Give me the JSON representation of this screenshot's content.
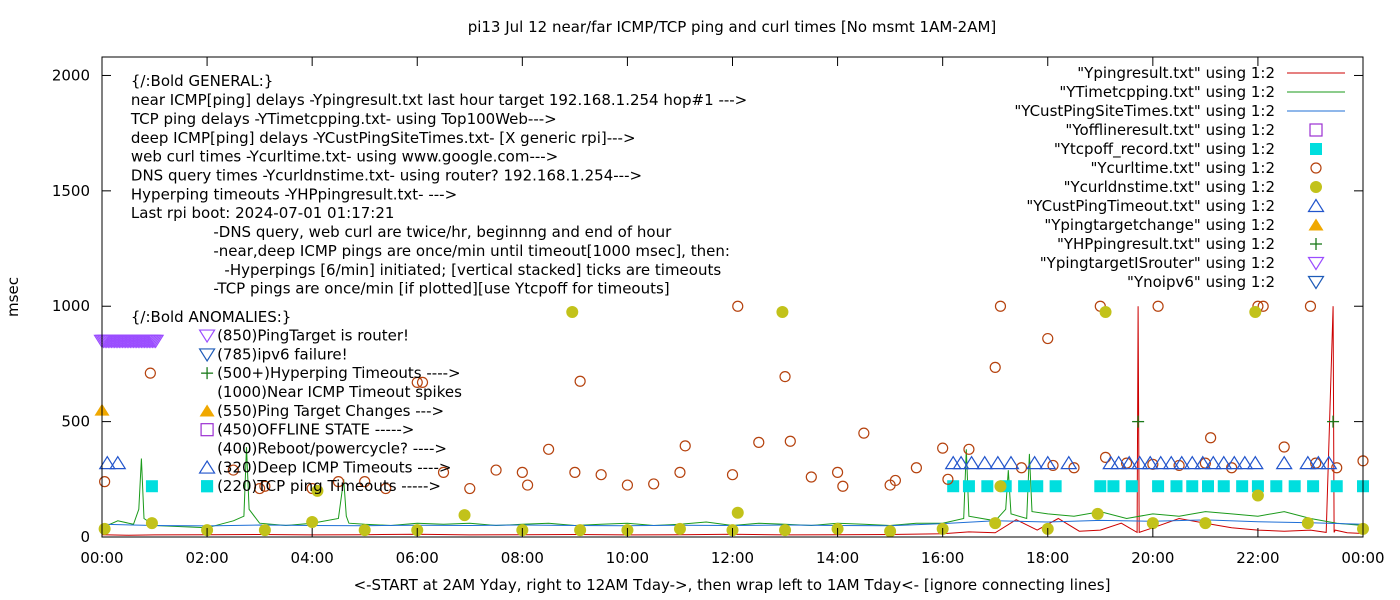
{
  "chart_data": {
    "type": "scatter",
    "title": "pi13 Jul 12  near/far ICMP/TCP ping and curl times [No msmt 1AM-2AM]",
    "xlabel": "<-START at 2AM Yday, right to 12AM Tday->, then wrap left to 1AM Tday<- [ignore connecting lines]",
    "ylabel": "msec",
    "xlim": [
      0,
      24
    ],
    "ylim": [
      0,
      2080
    ],
    "x_ticks": [
      {
        "v": 0,
        "label": "00:00"
      },
      {
        "v": 2,
        "label": "02:00"
      },
      {
        "v": 4,
        "label": "04:00"
      },
      {
        "v": 6,
        "label": "06:00"
      },
      {
        "v": 8,
        "label": "08:00"
      },
      {
        "v": 10,
        "label": "10:00"
      },
      {
        "v": 12,
        "label": "12:00"
      },
      {
        "v": 14,
        "label": "14:00"
      },
      {
        "v": 16,
        "label": "16:00"
      },
      {
        "v": 18,
        "label": "18:00"
      },
      {
        "v": 20,
        "label": "20:00"
      },
      {
        "v": 22,
        "label": "22:00"
      },
      {
        "v": 24,
        "label": "00:00"
      }
    ],
    "y_ticks": [
      {
        "v": 0,
        "label": "0"
      },
      {
        "v": 500,
        "label": "500"
      },
      {
        "v": 1000,
        "label": "1000"
      },
      {
        "v": 1500,
        "label": "1500"
      },
      {
        "v": 2000,
        "label": "2000"
      }
    ],
    "annotations": [
      {
        "text": "{/:Bold GENERAL:}",
        "x": 0.55,
        "y": 1975
      },
      {
        "text": "near ICMP[ping] delays -Ypingresult.txt last hour target 192.168.1.254 hop#1 --->",
        "x": 0.55,
        "y": 1893
      },
      {
        "text": "TCP ping delays -YTimetcpping.txt- using Top100Web--->",
        "x": 0.55,
        "y": 1812
      },
      {
        "text": "deep ICMP[ping] delays -YCustPingSiteTimes.txt- [X generic rpi]--->",
        "x": 0.55,
        "y": 1730
      },
      {
        "text": "web curl times -Ycurltime.txt- using www.google.com--->",
        "x": 0.55,
        "y": 1648
      },
      {
        "text": "DNS query times -Ycurldnstime.txt- using router? 192.168.1.254--->",
        "x": 0.55,
        "y": 1567
      },
      {
        "text": "Hyperping timeouts -YHPpingresult.txt- --->",
        "x": 0.55,
        "y": 1485
      },
      {
        "text": "Last rpi boot: 2024-07-01 01:17:21",
        "x": 0.55,
        "y": 1403
      },
      {
        "text": "-DNS query, web curl are twice/hr, beginnng and end of hour",
        "x": 2.12,
        "y": 1322
      },
      {
        "text": "-near,deep ICMP pings are once/min until timeout[1000 msec], then:",
        "x": 2.12,
        "y": 1240
      },
      {
        "text": "-Hyperpings [6/min] initiated; [vertical stacked] ticks are timeouts",
        "x": 2.33,
        "y": 1158
      },
      {
        "text": "-TCP pings are once/min [if plotted][use Ytcpoff for timeouts]",
        "x": 2.12,
        "y": 1077
      },
      {
        "text": "{/:Bold ANOMALIES:}",
        "x": 0.55,
        "y": 954
      },
      {
        "text": "(850)PingTarget is router!",
        "x": 2.19,
        "y": 873
      },
      {
        "text": "(785)ipv6 failure!",
        "x": 2.19,
        "y": 791
      },
      {
        "text": "(500+)Hyperping Timeouts ---->",
        "x": 2.19,
        "y": 710
      },
      {
        "text": "(1000)Near ICMP Timeout spikes",
        "x": 2.19,
        "y": 628
      },
      {
        "text": "(550)Ping Target Changes --->",
        "x": 2.19,
        "y": 546
      },
      {
        "text": "(450)OFFLINE STATE ----->",
        "x": 2.19,
        "y": 465
      },
      {
        "text": "(400)Reboot/powercycle? ---->",
        "x": 2.19,
        "y": 383
      },
      {
        "text": "(320)Deep ICMP Timeouts ---->",
        "x": 2.19,
        "y": 301
      },
      {
        "text": "(220)TCP ping Timeouts ----->",
        "x": 2.19,
        "y": 220
      }
    ],
    "annotation_markers": [
      {
        "symbol": "triangle-down-open",
        "color": "#9b4dff",
        "x": 2.0,
        "y": 873
      },
      {
        "symbol": "triangle-down-open",
        "color": "#1e5bb8",
        "x": 2.0,
        "y": 791
      },
      {
        "symbol": "plus",
        "color": "#1a7a1a",
        "x": 2.0,
        "y": 710
      },
      {
        "symbol": "triangle-filled",
        "color": "#f0a800",
        "x": 2.0,
        "y": 546
      },
      {
        "symbol": "square-open",
        "color": "#9b2fd1",
        "x": 2.0,
        "y": 465
      },
      {
        "symbol": "triangle-open",
        "color": "#2255cc",
        "x": 2.0,
        "y": 301
      },
      {
        "symbol": "square-filled",
        "color": "#00dede",
        "x": 2.0,
        "y": 220
      }
    ],
    "legend_position": "top-right",
    "legend": [
      {
        "label": "\"Ypingresult.txt\" using 1:2",
        "symbol": "line",
        "color": "#cc0000"
      },
      {
        "label": "\"YTimetcpping.txt\" using 1:2",
        "symbol": "line",
        "color": "#1a9a1a"
      },
      {
        "label": "\"YCustPingSiteTimes.txt\" using 1:2",
        "symbol": "line",
        "color": "#1f6fd6"
      },
      {
        "label": "\"Yofflineresult.txt\" using 1:2",
        "symbol": "square-open",
        "color": "#9b2fd1"
      },
      {
        "label": "\"Ytcpoff_record.txt\" using 1:2",
        "symbol": "square-filled",
        "color": "#00dede"
      },
      {
        "label": "\"Ycurltime.txt\" using 1:2",
        "symbol": "circle-open",
        "color": "#b5420e"
      },
      {
        "label": "\"Ycurldnstime.txt\" using 1:2",
        "symbol": "circle-filled",
        "color": "#c2c21a"
      },
      {
        "label": "\"YCustPingTimeout.txt\" using 1:2",
        "symbol": "triangle-open",
        "color": "#2255cc"
      },
      {
        "label": "\"Ypingtargetchange\" using 1:2",
        "symbol": "triangle-filled",
        "color": "#f0a800"
      },
      {
        "label": "\"YHPpingresult.txt\" using 1:2",
        "symbol": "plus",
        "color": "#1a7a1a"
      },
      {
        "label": "\"YpingtargetISrouter\" using 1:2",
        "symbol": "triangle-down-open",
        "color": "#9b4dff"
      },
      {
        "label": "\"Ynoipv6\" using 1:2",
        "symbol": "triangle-down-open",
        "color": "#1e5bb8"
      }
    ],
    "series": [
      {
        "name": "\"Ypingresult.txt\" using 1:2",
        "kind": "line",
        "color": "#cc0000",
        "x": [
          0,
          0.5,
          1,
          2,
          3,
          4,
          5,
          6,
          7,
          8,
          9,
          10,
          11,
          12,
          13,
          14,
          15,
          16,
          16.5,
          17,
          17.4,
          17.8,
          18.2,
          18.6,
          19,
          19.4,
          19.7,
          19.72,
          19.74,
          20,
          20.5,
          21,
          21.5,
          22,
          22.5,
          23,
          23.3,
          23.43,
          23.45,
          23.47,
          23.7,
          24
        ],
        "y": [
          10,
          8,
          9,
          10,
          11,
          9,
          10,
          12,
          9,
          10,
          11,
          9,
          10,
          12,
          9,
          10,
          11,
          14,
          22,
          18,
          75,
          30,
          80,
          25,
          30,
          60,
          20,
          1000,
          20,
          40,
          80,
          60,
          40,
          30,
          25,
          30,
          20,
          1000,
          20,
          30,
          18,
          15
        ]
      },
      {
        "name": "\"YTimetcpping.txt\" using 1:2",
        "kind": "line",
        "color": "#1a9a1a",
        "x": [
          0,
          0.3,
          0.6,
          0.7,
          0.75,
          0.8,
          1.0,
          1.5,
          2.0,
          2.5,
          2.7,
          2.75,
          2.8,
          3.0,
          3.5,
          4.0,
          4.5,
          4.6,
          4.65,
          4.7,
          5.0,
          5.5,
          6.0,
          6.5,
          7.0,
          7.5,
          8.0,
          8.5,
          9.0,
          9.5,
          10.0,
          10.5,
          11.0,
          11.5,
          12.0,
          12.5,
          13.0,
          13.5,
          14.0,
          14.5,
          15.0,
          15.5,
          16.0,
          16.4,
          16.45,
          16.5,
          17.0,
          17.2,
          17.25,
          17.3,
          17.6,
          17.65,
          17.7,
          18.0,
          18.5,
          19.0,
          19.5,
          20.0,
          20.5,
          21.0,
          21.5,
          22.0,
          22.5,
          23.0,
          23.5,
          24.0
        ],
        "y": [
          40,
          70,
          55,
          120,
          340,
          80,
          50,
          45,
          40,
          70,
          90,
          390,
          120,
          60,
          50,
          60,
          80,
          250,
          90,
          60,
          55,
          50,
          60,
          55,
          60,
          50,
          55,
          60,
          50,
          55,
          60,
          50,
          55,
          65,
          50,
          60,
          55,
          50,
          60,
          55,
          50,
          60,
          60,
          80,
          380,
          90,
          70,
          120,
          290,
          100,
          80,
          360,
          110,
          100,
          90,
          110,
          80,
          100,
          90,
          110,
          100,
          90,
          110,
          80,
          60,
          50
        ]
      },
      {
        "name": "\"YCustPingSiteTimes.txt\" using 1:2",
        "kind": "line",
        "color": "#1f6fd6",
        "x": [
          0,
          1,
          2,
          3,
          4,
          5,
          6,
          7,
          8,
          9,
          10,
          11,
          12,
          13,
          14,
          15,
          16,
          17,
          18,
          19,
          20,
          21,
          22,
          23,
          24
        ],
        "y": [
          55,
          50,
          48,
          52,
          50,
          49,
          51,
          50,
          52,
          50,
          49,
          51,
          50,
          52,
          50,
          49,
          58,
          70,
          65,
          72,
          68,
          74,
          66,
          62,
          55
        ]
      },
      {
        "name": "\"Ytcpoff_record.txt\" using 1:2",
        "kind": "square-filled",
        "color": "#00dede",
        "x": [
          0.95,
          2.0,
          16.2,
          16.5,
          16.85,
          17.2,
          17.55,
          17.8,
          18.15,
          19.0,
          19.25,
          19.6,
          20.1,
          20.45,
          20.75,
          21.05,
          21.35,
          21.7,
          22.0,
          22.35,
          22.7,
          23.05,
          23.5,
          24.0
        ],
        "y": [
          220,
          220,
          220,
          220,
          220,
          220,
          220,
          220,
          220,
          220,
          220,
          220,
          220,
          220,
          220,
          220,
          220,
          220,
          220,
          220,
          220,
          220,
          220,
          220
        ]
      },
      {
        "name": "\"Ycurltime.txt\" using 1:2",
        "kind": "circle-open",
        "color": "#b5420e",
        "x": [
          0.05,
          0.92,
          2.5,
          3.0,
          3.1,
          4.0,
          4.5,
          5.0,
          5.4,
          6.0,
          6.1,
          6.5,
          7.0,
          7.5,
          8.0,
          8.1,
          8.5,
          9.0,
          9.1,
          9.5,
          10.0,
          10.5,
          11.0,
          11.1,
          12.0,
          12.1,
          12.5,
          13.0,
          13.1,
          13.5,
          14.0,
          14.1,
          14.5,
          15.0,
          15.1,
          15.5,
          16.0,
          16.1,
          16.5,
          17.0,
          17.1,
          17.5,
          18.0,
          18.1,
          18.5,
          19.0,
          19.1,
          19.5,
          20.0,
          20.1,
          20.5,
          21.0,
          21.1,
          21.5,
          22.0,
          22.1,
          22.5,
          23.0,
          23.1,
          23.5,
          24.0
        ],
        "y": [
          240,
          710,
          290,
          210,
          220,
          210,
          240,
          240,
          210,
          670,
          670,
          280,
          210,
          290,
          280,
          225,
          380,
          280,
          675,
          270,
          225,
          230,
          280,
          395,
          270,
          1000,
          410,
          695,
          415,
          260,
          280,
          220,
          450,
          225,
          245,
          300,
          385,
          250,
          380,
          735,
          1000,
          300,
          860,
          310,
          300,
          1000,
          345,
          320,
          315,
          1000,
          310,
          320,
          430,
          300,
          1000,
          1000,
          390,
          1000,
          320,
          300,
          330
        ]
      },
      {
        "name": "\"Ycurldnstime.txt\" using 1:2",
        "kind": "circle-filled",
        "color": "#c2c21a",
        "x": [
          0.05,
          0.95,
          2.0,
          3.1,
          4.0,
          4.1,
          5.0,
          6.0,
          6.9,
          8.0,
          8.95,
          9.1,
          10.0,
          11.0,
          12.0,
          12.1,
          12.95,
          13.0,
          14.0,
          15.0,
          16.0,
          17.0,
          17.1,
          18.0,
          18.95,
          19.1,
          20.0,
          21.0,
          21.95,
          22.0,
          22.95,
          24.0
        ],
        "y": [
          35,
          60,
          30,
          30,
          65,
          200,
          30,
          30,
          95,
          30,
          975,
          30,
          30,
          35,
          30,
          105,
          975,
          30,
          35,
          25,
          35,
          60,
          220,
          35,
          100,
          975,
          60,
          60,
          975,
          180,
          60,
          35
        ]
      },
      {
        "name": "\"YCustPingTimeout.txt\" using 1:2",
        "kind": "triangle-open",
        "color": "#2255cc",
        "x": [
          0.1,
          0.3,
          16.2,
          16.35,
          16.55,
          16.8,
          17.05,
          17.3,
          17.75,
          18.0,
          18.4,
          19.2,
          19.35,
          19.55,
          19.75,
          19.95,
          20.15,
          20.35,
          20.55,
          20.75,
          20.95,
          21.15,
          21.35,
          21.55,
          21.75,
          21.95,
          22.5,
          22.95,
          23.15,
          23.35
        ],
        "y": [
          320,
          320,
          320,
          320,
          320,
          320,
          320,
          320,
          320,
          320,
          320,
          320,
          320,
          320,
          320,
          320,
          320,
          320,
          320,
          320,
          320,
          320,
          320,
          320,
          320,
          320,
          320,
          320,
          320,
          320
        ]
      },
      {
        "name": "\"Ypingtargetchange\" using 1:2",
        "kind": "triangle-filled",
        "color": "#f0a800",
        "x": [
          0.0
        ],
        "y": [
          550
        ]
      },
      {
        "name": "\"YHPpingresult.txt\" using 1:2",
        "kind": "plus",
        "color": "#1a7a1a",
        "x": [
          19.72,
          23.43
        ],
        "y": [
          500,
          500
        ]
      },
      {
        "name": "\"YpingtargetISrouter\" using 1:2",
        "kind": "triangle-down-open",
        "color": "#9b4dff",
        "x": [
          0.0,
          0.03,
          0.06,
          0.09,
          0.12,
          0.15,
          0.18,
          0.21,
          0.24,
          0.27,
          0.3,
          0.33,
          0.36,
          0.39,
          0.42,
          0.45,
          0.48,
          0.51,
          0.54,
          0.57,
          0.6,
          0.63,
          0.66,
          0.69,
          0.72,
          0.75,
          0.78,
          0.81,
          0.84,
          0.87,
          0.9,
          0.93,
          0.96,
          0.99,
          1.02
        ],
        "y": [
          850,
          850,
          850,
          850,
          850,
          850,
          850,
          850,
          850,
          850,
          850,
          850,
          850,
          850,
          850,
          850,
          850,
          850,
          850,
          850,
          850,
          850,
          850,
          850,
          850,
          850,
          850,
          850,
          850,
          850,
          850,
          850,
          850,
          850,
          850
        ]
      }
    ]
  }
}
